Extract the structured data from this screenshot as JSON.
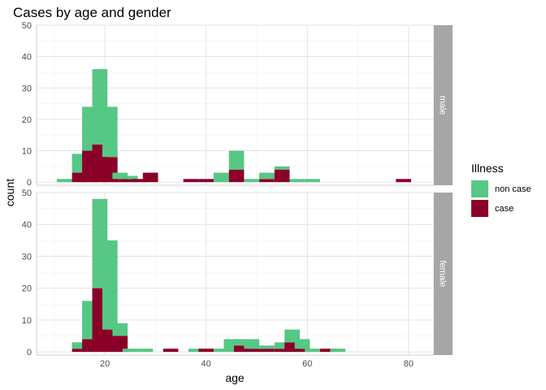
{
  "chart_data": {
    "type": "bar",
    "subtype": "stacked-histogram-faceted",
    "title": "Cases by age and gender",
    "xlabel": "age",
    "ylabel": "count",
    "xlim": [
      6.5,
      85
    ],
    "ylim": [
      -1,
      50
    ],
    "bin_width": 3,
    "x_ticks": [
      20,
      40,
      60,
      80
    ],
    "y_ticks": [
      0,
      10,
      20,
      30,
      40,
      50
    ],
    "grid": true,
    "legend": {
      "title": "Illness",
      "position": "right",
      "entries": [
        {
          "label": "non case",
          "color": "#57c785"
        },
        {
          "label": "case",
          "color": "#8b0029"
        }
      ]
    },
    "facets": [
      {
        "label": "male",
        "bins": [
          {
            "x0": 10.5,
            "non_case": 1,
            "case": 0
          },
          {
            "x0": 13.5,
            "non_case": 6,
            "case": 3
          },
          {
            "x0": 15.5,
            "non_case": 14,
            "case": 10
          },
          {
            "x0": 17.5,
            "non_case": 24,
            "case": 12
          },
          {
            "x0": 19.5,
            "non_case": 16,
            "case": 8
          },
          {
            "x0": 21.5,
            "non_case": 2,
            "case": 1
          },
          {
            "x0": 23.5,
            "non_case": 1,
            "case": 1
          },
          {
            "x0": 25.5,
            "non_case": 0,
            "case": 1
          },
          {
            "x0": 27.5,
            "non_case": 0,
            "case": 3
          },
          {
            "x0": 35.5,
            "non_case": 0,
            "case": 1
          },
          {
            "x0": 38.5,
            "non_case": 0,
            "case": 1
          },
          {
            "x0": 41.5,
            "non_case": 3,
            "case": 0
          },
          {
            "x0": 44.5,
            "non_case": 6,
            "case": 4
          },
          {
            "x0": 47.5,
            "non_case": 1,
            "case": 0
          },
          {
            "x0": 50.5,
            "non_case": 2,
            "case": 1
          },
          {
            "x0": 53.5,
            "non_case": 1,
            "case": 4
          },
          {
            "x0": 56.5,
            "non_case": 1,
            "case": 0
          },
          {
            "x0": 59.5,
            "non_case": 1,
            "case": 0
          },
          {
            "x0": 77.5,
            "non_case": 0,
            "case": 1
          }
        ]
      },
      {
        "label": "female",
        "bins": [
          {
            "x0": 13.5,
            "non_case": 2,
            "case": 1
          },
          {
            "x0": 15.5,
            "non_case": 12,
            "case": 4
          },
          {
            "x0": 17.5,
            "non_case": 28,
            "case": 20
          },
          {
            "x0": 19.5,
            "non_case": 28,
            "case": 7
          },
          {
            "x0": 21.5,
            "non_case": 4,
            "case": 5
          },
          {
            "x0": 23.5,
            "non_case": 1,
            "case": 0
          },
          {
            "x0": 26.5,
            "non_case": 1,
            "case": 0
          },
          {
            "x0": 31.5,
            "non_case": 0,
            "case": 1
          },
          {
            "x0": 36.5,
            "non_case": 1,
            "case": 0
          },
          {
            "x0": 38.5,
            "non_case": 0,
            "case": 1
          },
          {
            "x0": 41.5,
            "non_case": 1,
            "case": 0
          },
          {
            "x0": 43.5,
            "non_case": 4,
            "case": 0
          },
          {
            "x0": 45.5,
            "non_case": 2,
            "case": 2
          },
          {
            "x0": 47.5,
            "non_case": 3,
            "case": 1
          },
          {
            "x0": 50.5,
            "non_case": 1,
            "case": 1
          },
          {
            "x0": 53.5,
            "non_case": 2,
            "case": 1
          },
          {
            "x0": 55.5,
            "non_case": 4,
            "case": 3
          },
          {
            "x0": 57.5,
            "non_case": 3,
            "case": 1
          },
          {
            "x0": 59.5,
            "non_case": 1,
            "case": 0
          },
          {
            "x0": 62.5,
            "non_case": 0,
            "case": 1
          },
          {
            "x0": 64.5,
            "non_case": 1,
            "case": 0
          }
        ]
      }
    ]
  }
}
